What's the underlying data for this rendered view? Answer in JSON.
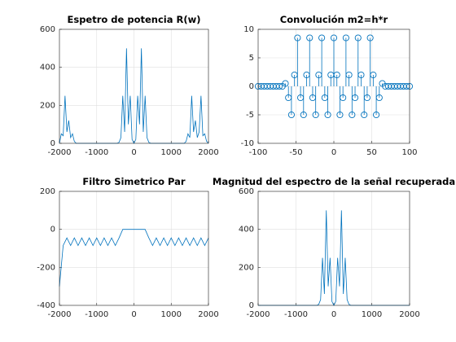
{
  "chart_data": [
    {
      "type": "line",
      "title": "Espetro de potencia R(w)",
      "color": "#0072bd",
      "grid": true,
      "xlim": [
        -2000,
        2000
      ],
      "xticks": [
        -2000,
        -1000,
        0,
        1000,
        2000
      ],
      "ylim": [
        0,
        600
      ],
      "yticks": [
        0,
        200,
        400,
        600
      ],
      "x": [
        -2000,
        -1950,
        -1900,
        -1850,
        -1800,
        -1750,
        -1700,
        -1650,
        -1600,
        -1550,
        -1500,
        -1450,
        -1400,
        -1350,
        -1300,
        -1250,
        -1200,
        -1150,
        -1100,
        -1050,
        -1000,
        -950,
        -900,
        -850,
        -800,
        -750,
        -700,
        -650,
        -600,
        -550,
        -500,
        -450,
        -400,
        -350,
        -300,
        -250,
        -200,
        -150,
        -100,
        -50,
        0,
        50,
        100,
        150,
        200,
        250,
        300,
        350,
        400,
        450,
        500,
        550,
        600,
        650,
        700,
        750,
        800,
        850,
        900,
        950,
        1000,
        1050,
        1100,
        1150,
        1200,
        1250,
        1300,
        1350,
        1400,
        1450,
        1500,
        1550,
        1600,
        1650,
        1700,
        1750,
        1800,
        1850,
        1900,
        1950,
        2000
      ],
      "values": [
        0,
        50,
        40,
        250,
        60,
        120,
        30,
        50,
        10,
        0,
        0,
        0,
        0,
        0,
        0,
        0,
        0,
        0,
        0,
        0,
        0,
        0,
        0,
        0,
        0,
        0,
        0,
        0,
        0,
        0,
        0,
        0,
        5,
        30,
        250,
        60,
        500,
        100,
        250,
        20,
        0,
        20,
        250,
        100,
        500,
        60,
        250,
        30,
        5,
        0,
        0,
        0,
        0,
        0,
        0,
        0,
        0,
        0,
        0,
        0,
        0,
        0,
        0,
        0,
        0,
        0,
        0,
        0,
        10,
        50,
        30,
        250,
        60,
        120,
        30,
        60,
        250,
        40,
        50,
        10,
        0
      ]
    },
    {
      "type": "stem",
      "title": "Convolución m2=h*r",
      "color": "#0072bd",
      "grid": true,
      "xlim": [
        -100,
        100
      ],
      "xticks": [
        -100,
        -50,
        0,
        50,
        100
      ],
      "ylim": [
        -10,
        10
      ],
      "yticks": [
        -10,
        -5,
        0,
        5,
        10
      ],
      "x": [
        -100,
        -96,
        -92,
        -88,
        -84,
        -80,
        -76,
        -72,
        -68,
        -64,
        -60,
        -56,
        -52,
        -48,
        -44,
        -40,
        -36,
        -32,
        -28,
        -24,
        -20,
        -16,
        -12,
        -8,
        -4,
        0,
        4,
        8,
        12,
        16,
        20,
        24,
        28,
        32,
        36,
        40,
        44,
        48,
        52,
        56,
        60,
        64,
        68,
        72,
        76,
        80,
        84,
        88,
        92,
        96,
        100
      ],
      "values": [
        0,
        0,
        0,
        0,
        0,
        0,
        0,
        0,
        0,
        0.5,
        -2,
        -5,
        2,
        8.5,
        -2,
        -5,
        2,
        8.5,
        -2,
        -5,
        2,
        8.5,
        -2,
        -5,
        2,
        8.5,
        2,
        -5,
        -2,
        8.5,
        2,
        -5,
        -2,
        8.5,
        2,
        -5,
        -2,
        8.5,
        2,
        -5,
        -2,
        0.5,
        0,
        0,
        0,
        0,
        0,
        0,
        0,
        0,
        0
      ]
    },
    {
      "type": "line",
      "title": "Filtro Simetrico Par",
      "color": "#0072bd",
      "grid": true,
      "xlim": [
        -2000,
        2000
      ],
      "xticks": [
        -2000,
        -1000,
        0,
        1000,
        2000
      ],
      "ylim": [
        -400,
        200
      ],
      "yticks": [
        -400,
        -200,
        0,
        200
      ],
      "x": [
        -2000,
        -1900,
        -1800,
        -1700,
        -1600,
        -1500,
        -1400,
        -1300,
        -1200,
        -1100,
        -1000,
        -900,
        -800,
        -700,
        -600,
        -500,
        -400,
        -300,
        -200,
        -100,
        0,
        100,
        200,
        300,
        400,
        500,
        600,
        700,
        800,
        900,
        1000,
        1100,
        1200,
        1300,
        1400,
        1500,
        1600,
        1700,
        1800,
        1900,
        2000
      ],
      "values": [
        -300,
        -85,
        -45,
        -85,
        -45,
        -85,
        -45,
        -85,
        -45,
        -85,
        -45,
        -85,
        -45,
        -85,
        -45,
        -85,
        -45,
        0,
        0,
        0,
        0,
        0,
        0,
        0,
        -45,
        -85,
        -45,
        -85,
        -45,
        -85,
        -45,
        -85,
        -45,
        -85,
        -45,
        -85,
        -45,
        -85,
        -45,
        -85,
        -45
      ]
    },
    {
      "type": "line",
      "title": "Magnitud del espectro de la señal recuperada",
      "color": "#0072bd",
      "grid": true,
      "xlim": [
        -2000,
        2000
      ],
      "xticks": [
        -2000,
        -1000,
        0,
        1000,
        2000
      ],
      "ylim": [
        0,
        600
      ],
      "yticks": [
        0,
        200,
        400,
        600
      ],
      "x": [
        -2000,
        -1950,
        -1900,
        -1850,
        -1800,
        -1750,
        -1700,
        -1650,
        -1600,
        -1550,
        -1500,
        -1450,
        -1400,
        -1350,
        -1300,
        -1250,
        -1200,
        -1150,
        -1100,
        -1050,
        -1000,
        -950,
        -900,
        -850,
        -800,
        -750,
        -700,
        -650,
        -600,
        -550,
        -500,
        -450,
        -400,
        -350,
        -300,
        -250,
        -200,
        -150,
        -100,
        -50,
        0,
        50,
        100,
        150,
        200,
        250,
        300,
        350,
        400,
        450,
        500,
        550,
        600,
        650,
        700,
        750,
        800,
        850,
        900,
        950,
        1000,
        1050,
        1100,
        1150,
        1200,
        1250,
        1300,
        1350,
        1400,
        1450,
        1500,
        1550,
        1600,
        1650,
        1700,
        1750,
        1800,
        1850,
        1900,
        1950,
        2000
      ],
      "values": [
        0,
        0,
        0,
        0,
        0,
        0,
        0,
        0,
        0,
        0,
        0,
        0,
        0,
        0,
        0,
        0,
        0,
        0,
        0,
        0,
        0,
        0,
        0,
        0,
        0,
        0,
        0,
        0,
        0,
        0,
        0,
        0,
        5,
        30,
        250,
        60,
        500,
        100,
        250,
        20,
        0,
        20,
        250,
        100,
        500,
        60,
        250,
        30,
        5,
        0,
        0,
        0,
        0,
        0,
        0,
        0,
        0,
        0,
        0,
        0,
        0,
        0,
        0,
        0,
        0,
        0,
        0,
        0,
        0,
        0,
        0,
        0,
        0,
        0,
        0,
        0,
        0,
        0,
        0,
        0,
        0
      ]
    }
  ]
}
